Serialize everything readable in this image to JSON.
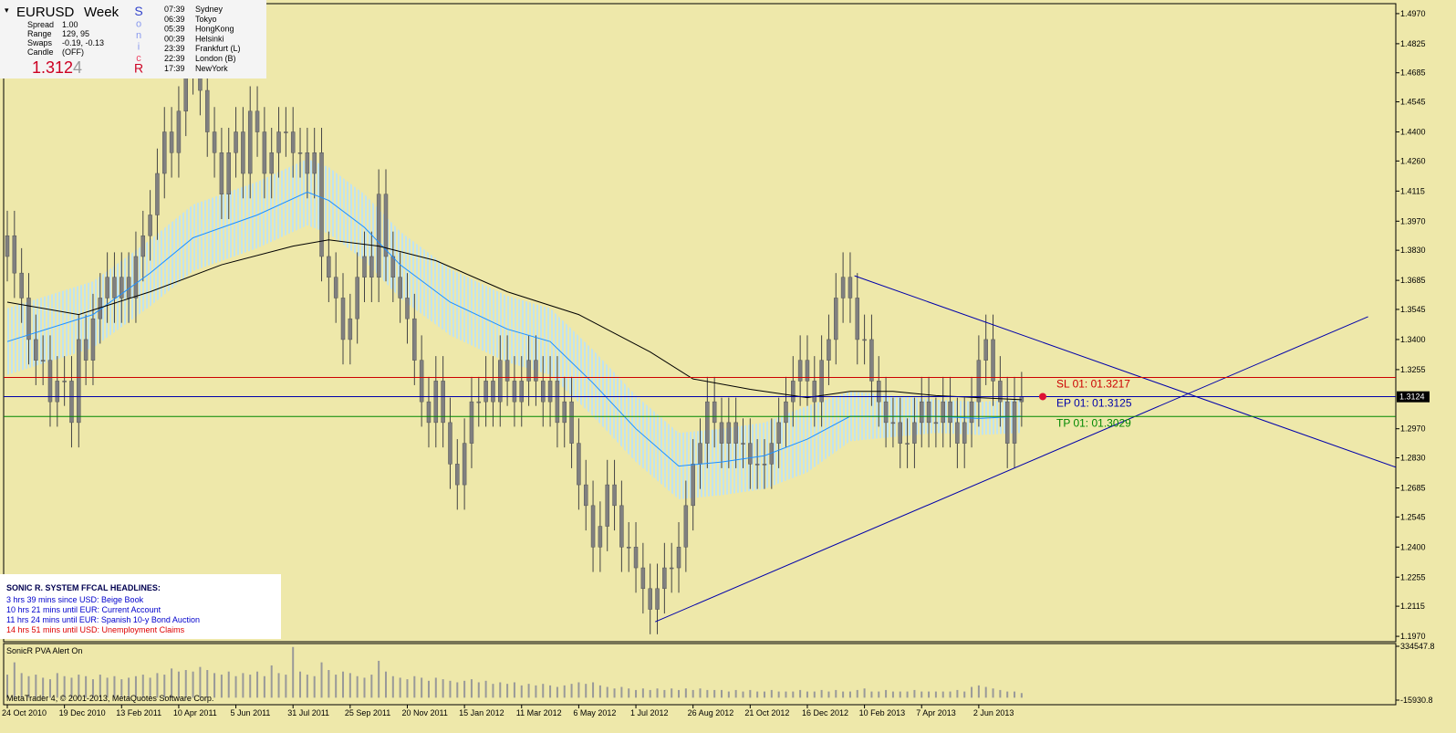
{
  "info_panel": {
    "symbol": "EURUSD",
    "period": "Week",
    "rows": [
      [
        "Spread",
        "1.00"
      ],
      [
        "Range",
        "129, 95"
      ],
      [
        "Swaps",
        "-0.19, -0.13"
      ],
      [
        "Candle",
        "(OFF)"
      ]
    ],
    "price_main": "1.312",
    "price_last": "4",
    "sonic_r": [
      "S",
      "o",
      "n",
      "i",
      "c",
      "R"
    ],
    "sessions": [
      [
        "07:39",
        "Sydney"
      ],
      [
        "06:39",
        "Tokyo"
      ],
      [
        "05:39",
        "HongKong"
      ],
      [
        "00:39",
        "Helsinki"
      ],
      [
        "23:39",
        "Frankfurt  (L)"
      ],
      [
        "22:39",
        "London  (B)"
      ],
      [
        "17:39",
        "NewYork"
      ]
    ]
  },
  "headlines": {
    "title": "SONIC R. SYSTEM  FFCAL HEADLINES:",
    "items": [
      {
        "text": "3 hrs 39 mins since USD: Beige Book",
        "color": "#0000cc"
      },
      {
        "text": "10 hrs 21 mins until EUR: Current Account",
        "color": "#0000cc"
      },
      {
        "text": "11 hrs 24 mins until EUR: Spanish 10-y Bond Auction",
        "color": "#0000cc"
      },
      {
        "text": "14 hrs 51 mins until USD: Unemployment Claims",
        "color": "#dd0000"
      }
    ]
  },
  "footer": "MetaTrader 4, © 2001-2013, MetaQuotes Software Corp.",
  "chart_data": {
    "type": "candlestick",
    "categories": [
      "24 Oct 2010",
      null,
      null,
      null,
      null,
      null,
      null,
      null,
      "19 Dec 2010",
      null,
      null,
      null,
      null,
      null,
      null,
      null,
      "13 Feb 2011",
      null,
      null,
      null,
      null,
      null,
      null,
      null,
      "10 Apr 2011",
      null,
      null,
      null,
      null,
      null,
      null,
      null,
      "5 Jun 2011",
      null,
      null,
      null,
      null,
      null,
      null,
      null,
      "31 Jul 2011",
      null,
      null,
      null,
      null,
      null,
      null,
      null,
      "25 Sep 2011",
      null,
      null,
      null,
      null,
      null,
      null,
      null,
      "20 Nov 2011",
      null,
      null,
      null,
      null,
      null,
      null,
      null,
      "15 Jan 2012",
      null,
      null,
      null,
      null,
      null,
      null,
      null,
      "11 Mar 2012",
      null,
      null,
      null,
      null,
      null,
      null,
      null,
      "6 May 2012",
      null,
      null,
      null,
      null,
      null,
      null,
      null,
      "1 Jul 2012",
      null,
      null,
      null,
      null,
      null,
      null,
      null,
      "26 Aug 2012",
      null,
      null,
      null,
      null,
      null,
      null,
      null,
      "21 Oct 2012",
      null,
      null,
      null,
      null,
      null,
      null,
      null,
      "16 Dec 2012",
      null,
      null,
      null,
      null,
      null,
      null,
      null,
      "10 Feb 2013",
      null,
      null,
      null,
      null,
      null,
      null,
      null,
      "7 Apr 2013",
      null,
      null,
      null,
      null,
      null,
      null,
      null,
      "2 Jun 2013",
      null,
      null,
      null,
      null,
      null,
      null
    ],
    "open": [
      1.38,
      1.39,
      1.372,
      1.36,
      1.34,
      1.33,
      1.33,
      1.31,
      1.32,
      1.32,
      1.3,
      1.34,
      1.33,
      1.35,
      1.36,
      1.37,
      1.36,
      1.37,
      1.36,
      1.38,
      1.39,
      1.4,
      1.42,
      1.44,
      1.43,
      1.45,
      1.47,
      1.48,
      1.46,
      1.44,
      1.43,
      1.41,
      1.43,
      1.44,
      1.42,
      1.45,
      1.44,
      1.42,
      1.43,
      1.44,
      1.44,
      1.43,
      1.43,
      1.42,
      1.43,
      1.38,
      1.37,
      1.36,
      1.34,
      1.35,
      1.37,
      1.38,
      1.37,
      1.41,
      1.38,
      1.37,
      1.36,
      1.35,
      1.33,
      1.31,
      1.3,
      1.32,
      1.3,
      1.28,
      1.27,
      1.29,
      1.31,
      1.31,
      1.32,
      1.31,
      1.33,
      1.32,
      1.31,
      1.32,
      1.33,
      1.32,
      1.31,
      1.32,
      1.3,
      1.31,
      1.29,
      1.27,
      1.26,
      1.24,
      1.25,
      1.27,
      1.26,
      1.24,
      1.24,
      1.23,
      1.22,
      1.21,
      1.22,
      1.23,
      1.23,
      1.24,
      1.26,
      1.28,
      1.29,
      1.31,
      1.3,
      1.29,
      1.3,
      1.29,
      1.29,
      1.28,
      1.28,
      1.28,
      1.29,
      1.3,
      1.31,
      1.32,
      1.33,
      1.32,
      1.31,
      1.33,
      1.34,
      1.36,
      1.37,
      1.36,
      1.34,
      1.34,
      1.32,
      1.31,
      1.3,
      1.3,
      1.29,
      1.29,
      1.3,
      1.31,
      1.3,
      1.3,
      1.31,
      1.3,
      1.29,
      1.3,
      1.31,
      1.33,
      1.34,
      1.32,
      1.31,
      1.29,
      1.31
    ],
    "high": [
      1.402,
      1.402,
      1.384,
      1.372,
      1.352,
      1.342,
      1.342,
      1.332,
      1.332,
      1.332,
      1.352,
      1.352,
      1.362,
      1.372,
      1.382,
      1.382,
      1.382,
      1.382,
      1.392,
      1.402,
      1.412,
      1.432,
      1.452,
      1.452,
      1.462,
      1.482,
      1.492,
      1.492,
      1.472,
      1.452,
      1.442,
      1.442,
      1.452,
      1.452,
      1.462,
      1.462,
      1.452,
      1.442,
      1.452,
      1.452,
      1.452,
      1.442,
      1.442,
      1.442,
      1.442,
      1.392,
      1.382,
      1.372,
      1.362,
      1.382,
      1.392,
      1.392,
      1.422,
      1.422,
      1.392,
      1.382,
      1.372,
      1.362,
      1.342,
      1.322,
      1.332,
      1.332,
      1.312,
      1.292,
      1.302,
      1.322,
      1.322,
      1.332,
      1.332,
      1.342,
      1.342,
      1.332,
      1.332,
      1.342,
      1.342,
      1.332,
      1.332,
      1.332,
      1.322,
      1.322,
      1.302,
      1.282,
      1.272,
      1.262,
      1.282,
      1.282,
      1.272,
      1.252,
      1.252,
      1.242,
      1.232,
      1.232,
      1.242,
      1.242,
      1.252,
      1.272,
      1.292,
      1.302,
      1.322,
      1.322,
      1.312,
      1.312,
      1.312,
      1.302,
      1.302,
      1.292,
      1.292,
      1.302,
      1.312,
      1.322,
      1.332,
      1.342,
      1.342,
      1.332,
      1.342,
      1.352,
      1.372,
      1.382,
      1.382,
      1.372,
      1.352,
      1.352,
      1.332,
      1.322,
      1.312,
      1.312,
      1.302,
      1.312,
      1.322,
      1.322,
      1.312,
      1.322,
      1.322,
      1.312,
      1.312,
      1.322,
      1.342,
      1.352,
      1.352,
      1.332,
      1.322,
      1.322,
      1.3244
    ],
    "low": [
      1.368,
      1.36,
      1.348,
      1.328,
      1.318,
      1.318,
      1.298,
      1.298,
      1.308,
      1.288,
      1.288,
      1.318,
      1.318,
      1.338,
      1.348,
      1.348,
      1.348,
      1.348,
      1.348,
      1.368,
      1.378,
      1.388,
      1.408,
      1.418,
      1.418,
      1.438,
      1.458,
      1.448,
      1.428,
      1.418,
      1.398,
      1.398,
      1.418,
      1.408,
      1.408,
      1.428,
      1.408,
      1.408,
      1.418,
      1.428,
      1.418,
      1.418,
      1.408,
      1.408,
      1.368,
      1.358,
      1.348,
      1.328,
      1.328,
      1.338,
      1.358,
      1.358,
      1.358,
      1.368,
      1.358,
      1.348,
      1.338,
      1.318,
      1.298,
      1.288,
      1.288,
      1.288,
      1.268,
      1.258,
      1.258,
      1.278,
      1.298,
      1.298,
      1.298,
      1.298,
      1.308,
      1.298,
      1.298,
      1.308,
      1.308,
      1.298,
      1.298,
      1.288,
      1.288,
      1.278,
      1.258,
      1.248,
      1.228,
      1.228,
      1.238,
      1.248,
      1.228,
      1.228,
      1.218,
      1.208,
      1.198,
      1.198,
      1.208,
      1.218,
      1.218,
      1.228,
      1.248,
      1.268,
      1.278,
      1.288,
      1.278,
      1.278,
      1.278,
      1.278,
      1.268,
      1.268,
      1.268,
      1.268,
      1.278,
      1.288,
      1.298,
      1.308,
      1.308,
      1.298,
      1.298,
      1.318,
      1.328,
      1.348,
      1.348,
      1.328,
      1.328,
      1.308,
      1.298,
      1.288,
      1.288,
      1.278,
      1.278,
      1.278,
      1.288,
      1.288,
      1.288,
      1.288,
      1.288,
      1.278,
      1.278,
      1.288,
      1.298,
      1.318,
      1.308,
      1.298,
      1.278,
      1.278,
      1.298
    ],
    "close": [
      1.39,
      1.372,
      1.36,
      1.34,
      1.33,
      1.33,
      1.31,
      1.32,
      1.32,
      1.3,
      1.34,
      1.33,
      1.35,
      1.36,
      1.37,
      1.36,
      1.37,
      1.36,
      1.38,
      1.39,
      1.4,
      1.42,
      1.44,
      1.43,
      1.45,
      1.47,
      1.48,
      1.46,
      1.44,
      1.43,
      1.41,
      1.43,
      1.44,
      1.42,
      1.45,
      1.44,
      1.42,
      1.43,
      1.44,
      1.44,
      1.43,
      1.43,
      1.42,
      1.43,
      1.38,
      1.37,
      1.36,
      1.34,
      1.35,
      1.37,
      1.38,
      1.37,
      1.41,
      1.38,
      1.37,
      1.36,
      1.35,
      1.33,
      1.31,
      1.3,
      1.32,
      1.3,
      1.28,
      1.27,
      1.29,
      1.31,
      1.31,
      1.32,
      1.31,
      1.33,
      1.32,
      1.31,
      1.32,
      1.33,
      1.32,
      1.31,
      1.32,
      1.3,
      1.31,
      1.29,
      1.27,
      1.26,
      1.24,
      1.25,
      1.27,
      1.26,
      1.24,
      1.24,
      1.23,
      1.22,
      1.21,
      1.22,
      1.23,
      1.23,
      1.24,
      1.26,
      1.28,
      1.29,
      1.31,
      1.3,
      1.29,
      1.3,
      1.29,
      1.29,
      1.28,
      1.28,
      1.28,
      1.29,
      1.3,
      1.31,
      1.32,
      1.33,
      1.32,
      1.31,
      1.33,
      1.34,
      1.36,
      1.37,
      1.36,
      1.34,
      1.34,
      1.32,
      1.31,
      1.3,
      1.3,
      1.29,
      1.29,
      1.3,
      1.31,
      1.3,
      1.3,
      1.31,
      1.3,
      1.29,
      1.3,
      1.31,
      1.33,
      1.34,
      1.32,
      1.31,
      1.29,
      1.31,
      1.3124
    ],
    "color": "#808080",
    "ylim": [
      1.1944,
      1.5018
    ],
    "yticks": [
      {
        "value": 1.497,
        "label": "1.4970"
      },
      1.4825,
      1.4685,
      1.4545,
      {
        "value": 1.44,
        "label": "1.4400"
      },
      {
        "value": 1.426,
        "label": "1.4260"
      },
      1.4115,
      {
        "value": 1.397,
        "label": "1.3970"
      },
      {
        "value": 1.383,
        "label": "1.3830"
      },
      1.3685,
      1.3545,
      {
        "value": 1.34,
        "label": "1.3400"
      },
      1.3255,
      {
        "value": 1.297,
        "label": "1.2970"
      },
      {
        "value": 1.283,
        "label": "1.2830"
      },
      1.2685,
      1.2545,
      {
        "value": 1.24,
        "label": "1.2400"
      },
      1.2255,
      1.2115,
      {
        "value": 1.197,
        "label": "1.1970"
      }
    ],
    "current_price": 1.3124,
    "band": {
      "color": "#bfe3f2",
      "x": [
        0,
        12,
        20,
        26,
        35,
        42,
        45,
        50,
        55,
        62,
        70,
        76,
        82,
        88,
        94,
        100,
        106,
        112,
        118,
        124,
        130,
        136,
        142
      ],
      "upper": [
        1.355,
        1.368,
        1.388,
        1.405,
        1.416,
        1.427,
        1.423,
        1.41,
        1.392,
        1.374,
        1.361,
        1.355,
        1.335,
        1.313,
        1.295,
        1.297,
        1.3,
        1.308,
        1.315,
        1.313,
        1.311,
        1.31,
        1.311
      ],
      "lower": [
        1.323,
        1.336,
        1.356,
        1.373,
        1.384,
        1.395,
        1.391,
        1.378,
        1.36,
        1.342,
        1.329,
        1.323,
        1.303,
        1.281,
        1.263,
        1.265,
        1.268,
        1.276,
        1.291,
        1.293,
        1.295,
        1.294,
        1.295
      ]
    },
    "overlays": [
      {
        "color": "#1e90ff",
        "x": [
          0,
          12,
          20,
          26,
          35,
          42,
          45,
          50,
          55,
          62,
          70,
          76,
          82,
          88,
          94,
          100,
          106,
          112,
          118,
          124,
          130,
          136,
          142
        ],
        "values": [
          1.339,
          1.352,
          1.372,
          1.389,
          1.4,
          1.411,
          1.407,
          1.394,
          1.376,
          1.358,
          1.345,
          1.339,
          1.319,
          1.297,
          1.279,
          1.281,
          1.284,
          1.292,
          1.303,
          1.303,
          1.303,
          1.302,
          1.303
        ]
      },
      {
        "color": "#000000",
        "x": [
          0,
          10,
          20,
          30,
          40,
          45,
          52,
          60,
          70,
          80,
          90,
          96,
          104,
          112,
          118,
          124,
          130,
          136,
          142
        ],
        "values": [
          1.358,
          1.352,
          1.363,
          1.376,
          1.385,
          1.388,
          1.385,
          1.378,
          1.363,
          1.352,
          1.334,
          1.321,
          1.316,
          1.312,
          1.315,
          1.315,
          1.313,
          1.312,
          1.311
        ]
      }
    ],
    "trendlines": [
      {
        "color": "#0000aa",
        "x": [
          118.6,
          199.2
        ],
        "values": [
          1.3707,
          1.2726
        ]
      },
      {
        "color": "#0000aa",
        "x": [
          90.7,
          190.5
        ],
        "values": [
          1.204,
          1.351
        ]
      }
    ],
    "levels": [
      {
        "label": "SL 01:  01.3217",
        "value": 1.3217,
        "color": "#cc0000"
      },
      {
        "label": "EP 01:  01.3125",
        "value": 1.3125,
        "color": "#0000aa"
      },
      {
        "label": "TP 01:  01.3029",
        "value": 1.3029,
        "color": "#008800"
      }
    ],
    "volume": {
      "title": "SonicR PVA   Alert On",
      "color": "#999999",
      "ylim": [
        -15930.8,
        334547.8
      ],
      "yticks": [
        334547.8,
        -15930.8
      ],
      "values": [
        150000,
        230000,
        160000,
        140000,
        150000,
        130000,
        120000,
        160000,
        140000,
        130000,
        150000,
        140000,
        120000,
        150000,
        130000,
        140000,
        120000,
        130000,
        140000,
        150000,
        130000,
        160000,
        150000,
        190000,
        170000,
        180000,
        170000,
        200000,
        180000,
        160000,
        150000,
        170000,
        140000,
        160000,
        150000,
        170000,
        140000,
        210000,
        160000,
        150000,
        330000,
        170000,
        150000,
        140000,
        230000,
        180000,
        150000,
        170000,
        160000,
        140000,
        130000,
        150000,
        240000,
        170000,
        140000,
        130000,
        120000,
        140000,
        130000,
        110000,
        130000,
        120000,
        110000,
        100000,
        110000,
        120000,
        100000,
        110000,
        90000,
        100000,
        90000,
        100000,
        80000,
        90000,
        80000,
        90000,
        80000,
        70000,
        80000,
        90000,
        100000,
        90000,
        100000,
        80000,
        70000,
        60000,
        70000,
        60000,
        50000,
        60000,
        50000,
        60000,
        50000,
        60000,
        50000,
        60000,
        50000,
        60000,
        50000,
        50000,
        50000,
        40000,
        50000,
        40000,
        50000,
        40000,
        40000,
        50000,
        40000,
        40000,
        40000,
        50000,
        40000,
        40000,
        50000,
        40000,
        50000,
        40000,
        40000,
        50000,
        60000,
        40000,
        40000,
        50000,
        40000,
        40000,
        40000,
        50000,
        40000,
        40000,
        40000,
        40000,
        40000,
        50000,
        40000,
        70000,
        80000,
        70000,
        60000,
        50000,
        40000,
        40000,
        30000
      ]
    }
  }
}
